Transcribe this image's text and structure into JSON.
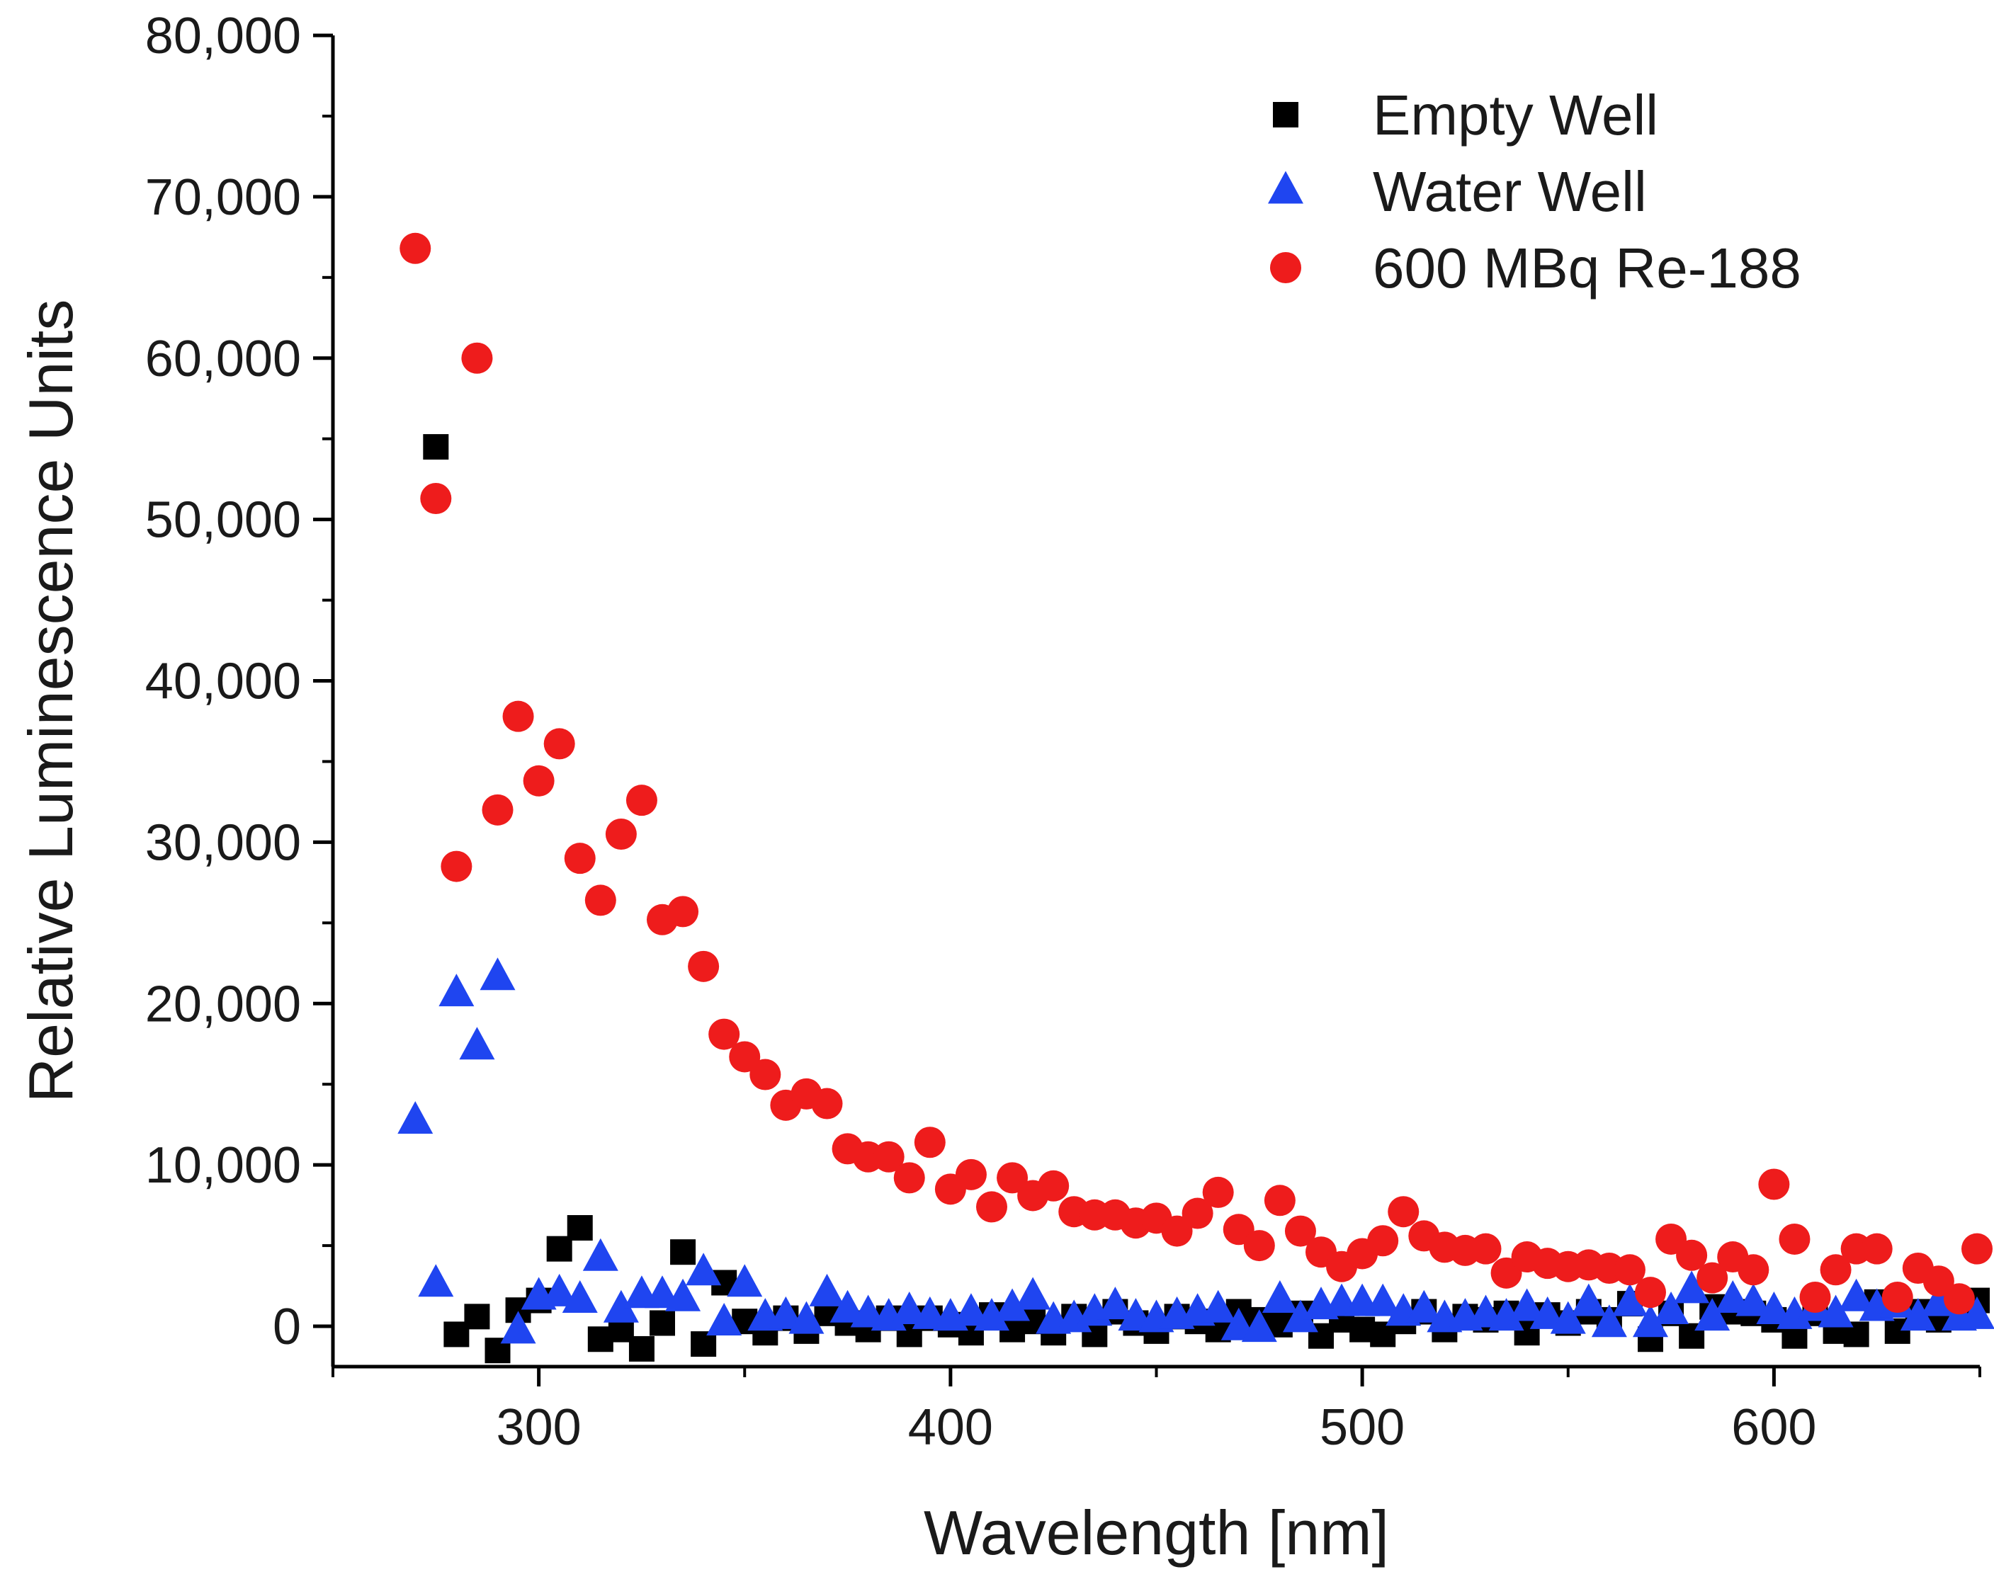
{
  "chart_data": {
    "type": "scatter",
    "title": "",
    "xlabel": "Wavelength [nm]",
    "ylabel": "Relative Luminescence Units",
    "xlim": [
      250,
      650
    ],
    "ylim": [
      -2500,
      80000
    ],
    "xticks": [
      300,
      400,
      500,
      600
    ],
    "xtick_labels": [
      "300",
      "400",
      "500",
      "600"
    ],
    "yticks": [
      0,
      10000,
      20000,
      30000,
      40000,
      50000,
      60000,
      70000,
      80000
    ],
    "ytick_labels": [
      "0",
      "10,000",
      "20,000",
      "30,000",
      "40,000",
      "50,000",
      "60,000",
      "70,000",
      "80,000"
    ],
    "grid": false,
    "legend_position": "top-right",
    "series": [
      {
        "name": "Empty Well",
        "marker": "square",
        "color": "#000000",
        "x": [
          275,
          280,
          285,
          290,
          295,
          300,
          305,
          310,
          315,
          320,
          325,
          330,
          335,
          340,
          345,
          350,
          355,
          360,
          365,
          370,
          375,
          380,
          385,
          390,
          395,
          400,
          405,
          410,
          415,
          420,
          425,
          430,
          435,
          440,
          445,
          450,
          455,
          460,
          465,
          470,
          475,
          480,
          485,
          490,
          495,
          500,
          505,
          510,
          515,
          520,
          525,
          530,
          535,
          540,
          545,
          550,
          555,
          560,
          565,
          570,
          575,
          580,
          585,
          590,
          595,
          600,
          605,
          610,
          615,
          620,
          625,
          630,
          635,
          640,
          645,
          650
        ],
        "y": [
          54500,
          -500,
          600,
          -1500,
          1000,
          1600,
          4800,
          6100,
          -800,
          -200,
          -1400,
          200,
          4600,
          -1100,
          2700,
          300,
          -400,
          500,
          -300,
          800,
          200,
          -200,
          500,
          -500,
          500,
          100,
          -400,
          700,
          -200,
          300,
          -400,
          600,
          -500,
          900,
          200,
          -300,
          600,
          300,
          -200,
          900,
          400,
          100,
          800,
          -600,
          400,
          -200,
          -500,
          300,
          900,
          -200,
          600,
          400,
          800,
          -400,
          700,
          200,
          900,
          400,
          1400,
          -800,
          800,
          -600,
          1200,
          900,
          800,
          400,
          -600,
          800,
          -300,
          -500,
          1500,
          -300,
          900,
          400,
          800,
          1600
        ]
      },
      {
        "name": "Water Well",
        "marker": "triangle",
        "color": "#1f45f0",
        "x": [
          270,
          275,
          280,
          285,
          290,
          295,
          300,
          305,
          310,
          315,
          320,
          325,
          330,
          335,
          340,
          345,
          350,
          355,
          360,
          365,
          370,
          375,
          380,
          385,
          390,
          395,
          400,
          405,
          410,
          415,
          420,
          425,
          430,
          435,
          440,
          445,
          450,
          455,
          460,
          465,
          470,
          475,
          480,
          485,
          490,
          495,
          500,
          505,
          510,
          515,
          520,
          525,
          530,
          535,
          540,
          545,
          550,
          555,
          560,
          565,
          570,
          575,
          580,
          585,
          590,
          595,
          600,
          605,
          610,
          615,
          620,
          625,
          630,
          635,
          640,
          645,
          650
        ],
        "y": [
          12700,
          2600,
          20600,
          17300,
          21600,
          -300,
          1800,
          2000,
          1600,
          4200,
          1000,
          1900,
          1900,
          1700,
          3300,
          200,
          2600,
          500,
          600,
          300,
          2000,
          1000,
          700,
          500,
          900,
          600,
          500,
          800,
          500,
          1100,
          1800,
          300,
          400,
          800,
          1200,
          500,
          400,
          600,
          800,
          1000,
          -100,
          -200,
          1600,
          400,
          1200,
          1400,
          1400,
          1400,
          800,
          1000,
          400,
          500,
          700,
          500,
          1100,
          600,
          300,
          1400,
          100,
          1400,
          100,
          900,
          2200,
          500,
          1600,
          1400,
          900,
          600,
          1100,
          700,
          1700,
          1100,
          1300,
          500,
          1400,
          500,
          600
        ]
      },
      {
        "name": "600 MBq Re-188",
        "marker": "circle",
        "color": "#ee1c1c",
        "x": [
          270,
          275,
          280,
          285,
          290,
          295,
          300,
          305,
          310,
          315,
          320,
          325,
          330,
          335,
          340,
          345,
          350,
          355,
          360,
          365,
          370,
          375,
          380,
          385,
          390,
          395,
          400,
          405,
          410,
          415,
          420,
          425,
          430,
          435,
          440,
          445,
          450,
          455,
          460,
          465,
          470,
          475,
          480,
          485,
          490,
          495,
          500,
          505,
          510,
          515,
          520,
          525,
          530,
          535,
          540,
          545,
          550,
          555,
          560,
          565,
          570,
          575,
          580,
          585,
          590,
          595,
          600,
          605,
          610,
          615,
          620,
          625,
          630,
          635,
          640,
          645,
          650
        ],
        "y": [
          66800,
          51300,
          28500,
          60000,
          32000,
          37800,
          33800,
          36100,
          29000,
          26400,
          30500,
          32600,
          25200,
          25700,
          22300,
          18100,
          16700,
          15600,
          13700,
          14400,
          13800,
          11000,
          10500,
          10500,
          9200,
          11400,
          8500,
          9400,
          7400,
          9200,
          8100,
          8700,
          7100,
          6900,
          6900,
          6400,
          6700,
          5900,
          7000,
          8300,
          6000,
          5000,
          7800,
          5900,
          4600,
          3700,
          4500,
          5300,
          7100,
          5600,
          4900,
          4700,
          4800,
          3300,
          4300,
          3900,
          3700,
          3800,
          3600,
          3500,
          2100,
          5400,
          4400,
          3000,
          4300,
          3500,
          8800,
          5400,
          1800,
          3500,
          4800,
          4800,
          1800,
          3600,
          2800,
          1700,
          4800
        ]
      }
    ]
  }
}
